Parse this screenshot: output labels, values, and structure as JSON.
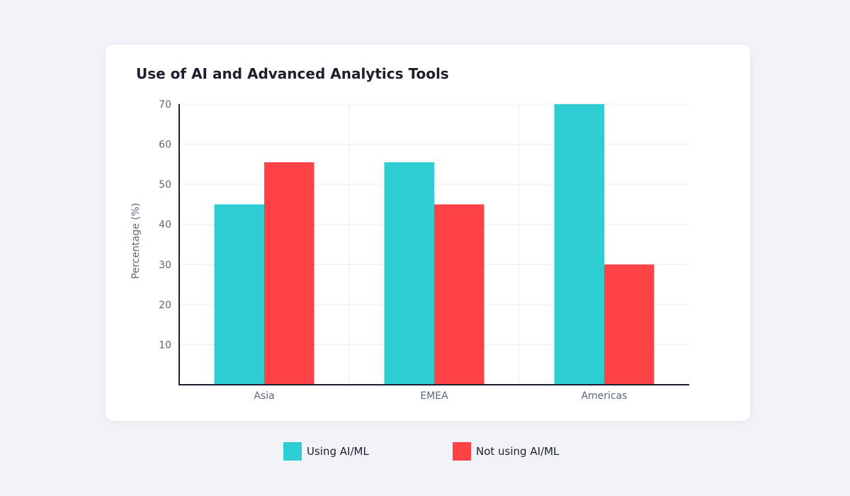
{
  "chart_data": {
    "type": "bar",
    "title": "Use of AI and Advanced Analytics Tools",
    "ylabel": "Percentage (%)",
    "xlabel": "",
    "categories": [
      "Asia",
      "EMEA",
      "Americas"
    ],
    "ylim": [
      0,
      70
    ],
    "yticks": [
      10,
      20,
      30,
      40,
      50,
      60,
      70
    ],
    "grid": true,
    "legend_position": "bottom",
    "series": [
      {
        "name": "Using AI/ML",
        "color": "#2ecdd3",
        "values": [
          45,
          55.5,
          70
        ]
      },
      {
        "name": "Not using AI/ML",
        "color": "#ff4246",
        "values": [
          55.5,
          45,
          30
        ]
      }
    ]
  }
}
